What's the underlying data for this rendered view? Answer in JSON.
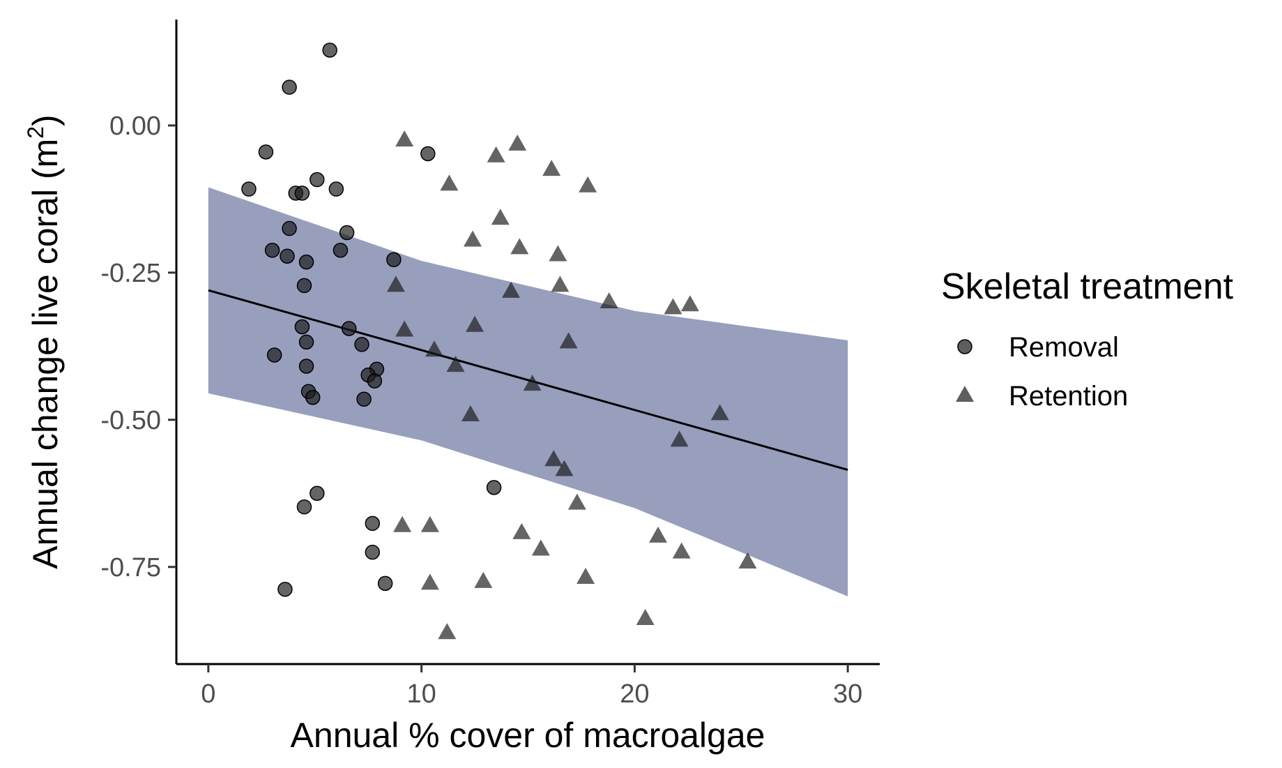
{
  "chart_data": {
    "type": "scatter",
    "xlabel": "Annual % cover of macroalgae",
    "ylabel_main": "Annual change live coral (m",
    "ylabel_sup": "2",
    "ylabel_close": ")",
    "xlim": [
      -1.5,
      31.5
    ],
    "ylim": [
      -0.915,
      0.18
    ],
    "x_ticks": [
      0,
      10,
      20,
      30
    ],
    "x_tick_labels": [
      "0",
      "10",
      "20",
      "30"
    ],
    "y_ticks": [
      0.0,
      -0.25,
      -0.5,
      -0.75
    ],
    "y_tick_labels": [
      "0.00",
      "-0.25",
      "-0.50",
      "-0.75"
    ],
    "grid": false,
    "legend_position": "right",
    "legend_title": "Skeletal treatment",
    "colors": {
      "points": "#1a1a1a",
      "ribbon": "#7a84ab",
      "line": "#000000"
    },
    "fit": {
      "line": [
        [
          0,
          -0.28
        ],
        [
          30,
          -0.585
        ]
      ],
      "ribbon_upper": [
        [
          0,
          -0.105
        ],
        [
          10,
          -0.23
        ],
        [
          20,
          -0.315
        ],
        [
          30,
          -0.365
        ]
      ],
      "ribbon_lower": [
        [
          0,
          -0.455
        ],
        [
          10,
          -0.535
        ],
        [
          20,
          -0.65
        ],
        [
          30,
          -0.8
        ]
      ]
    },
    "series": [
      {
        "name": "Removal",
        "shape": "circle",
        "points": [
          [
            5.7,
            0.128
          ],
          [
            3.8,
            0.065
          ],
          [
            2.7,
            -0.045
          ],
          [
            10.3,
            -0.048
          ],
          [
            5.1,
            -0.092
          ],
          [
            1.9,
            -0.108
          ],
          [
            6.0,
            -0.108
          ],
          [
            4.1,
            -0.115
          ],
          [
            4.4,
            -0.115
          ],
          [
            3.8,
            -0.175
          ],
          [
            6.5,
            -0.182
          ],
          [
            3.0,
            -0.212
          ],
          [
            6.2,
            -0.212
          ],
          [
            3.7,
            -0.222
          ],
          [
            4.6,
            -0.232
          ],
          [
            8.7,
            -0.228
          ],
          [
            4.5,
            -0.272
          ],
          [
            4.4,
            -0.342
          ],
          [
            6.6,
            -0.345
          ],
          [
            4.6,
            -0.368
          ],
          [
            7.2,
            -0.372
          ],
          [
            3.1,
            -0.39
          ],
          [
            4.6,
            -0.409
          ],
          [
            7.9,
            -0.414
          ],
          [
            7.5,
            -0.424
          ],
          [
            7.8,
            -0.434
          ],
          [
            4.7,
            -0.452
          ],
          [
            4.9,
            -0.462
          ],
          [
            7.3,
            -0.465
          ],
          [
            13.4,
            -0.615
          ],
          [
            5.1,
            -0.625
          ],
          [
            4.5,
            -0.648
          ],
          [
            7.7,
            -0.676
          ],
          [
            7.7,
            -0.725
          ],
          [
            8.3,
            -0.778
          ],
          [
            3.6,
            -0.788
          ]
        ]
      },
      {
        "name": "Retention",
        "shape": "triangle",
        "points": [
          [
            9.2,
            -0.025
          ],
          [
            14.5,
            -0.032
          ],
          [
            13.5,
            -0.052
          ],
          [
            16.1,
            -0.075
          ],
          [
            11.3,
            -0.1
          ],
          [
            17.8,
            -0.103
          ],
          [
            13.7,
            -0.158
          ],
          [
            12.4,
            -0.195
          ],
          [
            14.6,
            -0.208
          ],
          [
            16.4,
            -0.22
          ],
          [
            8.8,
            -0.272
          ],
          [
            16.5,
            -0.272
          ],
          [
            14.2,
            -0.282
          ],
          [
            18.8,
            -0.3
          ],
          [
            21.8,
            -0.31
          ],
          [
            22.6,
            -0.305
          ],
          [
            9.2,
            -0.348
          ],
          [
            12.5,
            -0.34
          ],
          [
            16.9,
            -0.368
          ],
          [
            10.6,
            -0.382
          ],
          [
            11.6,
            -0.408
          ],
          [
            15.2,
            -0.44
          ],
          [
            12.3,
            -0.492
          ],
          [
            24.0,
            -0.49
          ],
          [
            22.1,
            -0.535
          ],
          [
            16.2,
            -0.568
          ],
          [
            16.7,
            -0.585
          ],
          [
            17.3,
            -0.642
          ],
          [
            9.1,
            -0.68
          ],
          [
            10.4,
            -0.68
          ],
          [
            14.7,
            -0.692
          ],
          [
            21.1,
            -0.698
          ],
          [
            15.6,
            -0.72
          ],
          [
            22.2,
            -0.725
          ],
          [
            25.3,
            -0.742
          ],
          [
            17.7,
            -0.768
          ],
          [
            10.4,
            -0.778
          ],
          [
            12.9,
            -0.775
          ],
          [
            20.5,
            -0.838
          ],
          [
            11.2,
            -0.862
          ]
        ]
      }
    ]
  }
}
